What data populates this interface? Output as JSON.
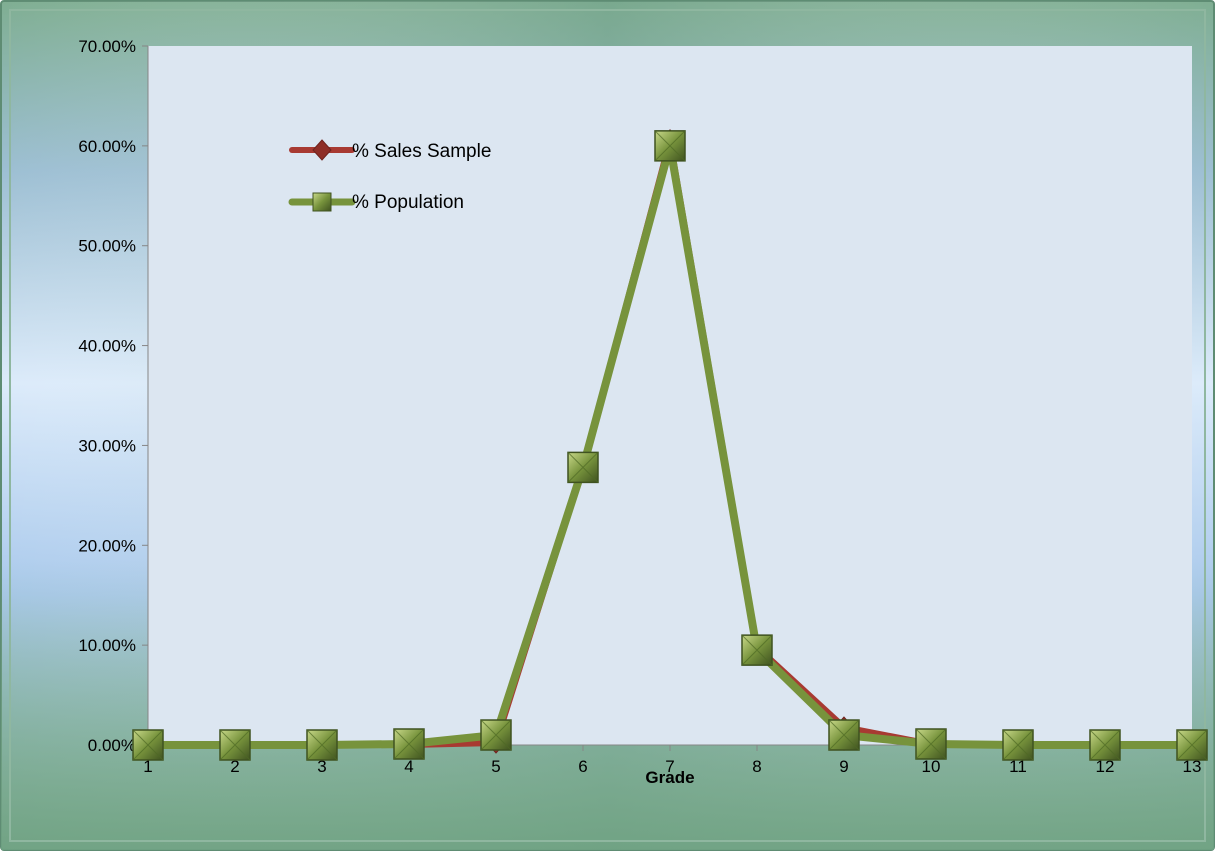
{
  "chart_data": {
    "type": "line",
    "xlabel": "Grade",
    "ylabel": "",
    "categories": [
      "1",
      "2",
      "3",
      "4",
      "5",
      "6",
      "7",
      "8",
      "9",
      "10",
      "11",
      "12",
      "13"
    ],
    "y_ticks": [
      "0.00%",
      "10.00%",
      "20.00%",
      "30.00%",
      "40.00%",
      "50.00%",
      "60.00%",
      "70.00%"
    ],
    "ylim": [
      0,
      70
    ],
    "grid": false,
    "legend_position": "top-left (inside plot)",
    "series": [
      {
        "name": "% Sales Sample",
        "values": [
          0,
          0,
          0,
          0,
          0.2,
          27.8,
          60.6,
          9.8,
          1.8,
          0.1,
          0,
          0,
          0
        ],
        "color": "#A83A32",
        "marker": "diamond"
      },
      {
        "name": "% Population",
        "values": [
          0,
          0,
          0,
          0.1,
          1.0,
          27.8,
          60.0,
          9.5,
          1.0,
          0.1,
          0,
          0,
          0
        ],
        "color": "#77933C",
        "marker": "square"
      }
    ]
  }
}
